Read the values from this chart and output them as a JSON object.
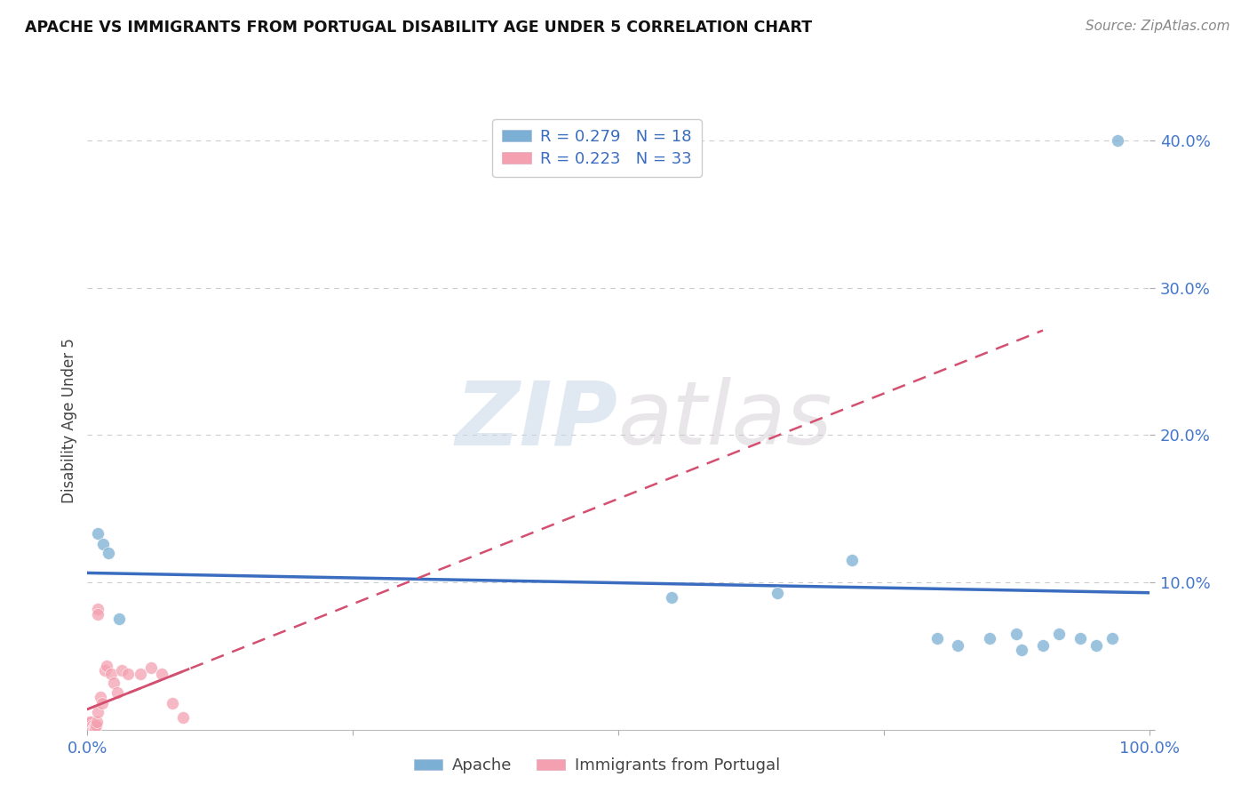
{
  "title": "APACHE VS IMMIGRANTS FROM PORTUGAL DISABILITY AGE UNDER 5 CORRELATION CHART",
  "source": "Source: ZipAtlas.com",
  "ylabel": "Disability Age Under 5",
  "watermark": "ZIPatlas",
  "apache_R": 0.279,
  "apache_N": 18,
  "portugal_R": 0.223,
  "portugal_N": 33,
  "xlim": [
    0.0,
    1.0
  ],
  "ylim": [
    0.0,
    0.42
  ],
  "ytick_vals": [
    0.0,
    0.1,
    0.2,
    0.3,
    0.4
  ],
  "ytick_labels": [
    "",
    "10.0%",
    "20.0%",
    "30.0%",
    "40.0%"
  ],
  "xtick_vals": [
    0.0,
    0.25,
    0.5,
    0.75,
    1.0
  ],
  "xtick_labels": [
    "0.0%",
    "",
    "",
    "",
    "100.0%"
  ],
  "grid_color": "#cccccc",
  "apache_color": "#7bafd4",
  "portugal_color": "#f4a0b0",
  "apache_line_color": "#3a6dbf",
  "portugal_line_color": "#d45070",
  "background_color": "#ffffff",
  "apache_points_x": [
    0.01,
    0.015,
    0.02,
    0.03,
    0.55,
    0.65,
    0.72,
    0.8,
    0.82,
    0.85,
    0.875,
    0.88,
    0.9,
    0.915,
    0.935,
    0.95,
    0.965,
    0.97
  ],
  "apache_points_y": [
    0.133,
    0.126,
    0.12,
    0.075,
    0.09,
    0.093,
    0.115,
    0.062,
    0.057,
    0.062,
    0.065,
    0.054,
    0.057,
    0.065,
    0.062,
    0.057,
    0.062,
    0.4
  ],
  "portugal_points_x": [
    0.001,
    0.001,
    0.002,
    0.002,
    0.003,
    0.003,
    0.004,
    0.004,
    0.005,
    0.005,
    0.006,
    0.006,
    0.007,
    0.007,
    0.008,
    0.009,
    0.01,
    0.01,
    0.01,
    0.012,
    0.014,
    0.016,
    0.018,
    0.022,
    0.025,
    0.028,
    0.032,
    0.038,
    0.05,
    0.06,
    0.07,
    0.08,
    0.09
  ],
  "portugal_points_y": [
    0.005,
    0.002,
    0.003,
    0.0,
    0.005,
    0.0,
    0.002,
    0.0,
    0.003,
    0.0,
    0.002,
    0.0,
    0.002,
    0.0,
    0.003,
    0.005,
    0.012,
    0.082,
    0.078,
    0.022,
    0.018,
    0.04,
    0.043,
    0.038,
    0.032,
    0.025,
    0.04,
    0.038,
    0.038,
    0.042,
    0.038,
    0.018,
    0.008
  ]
}
